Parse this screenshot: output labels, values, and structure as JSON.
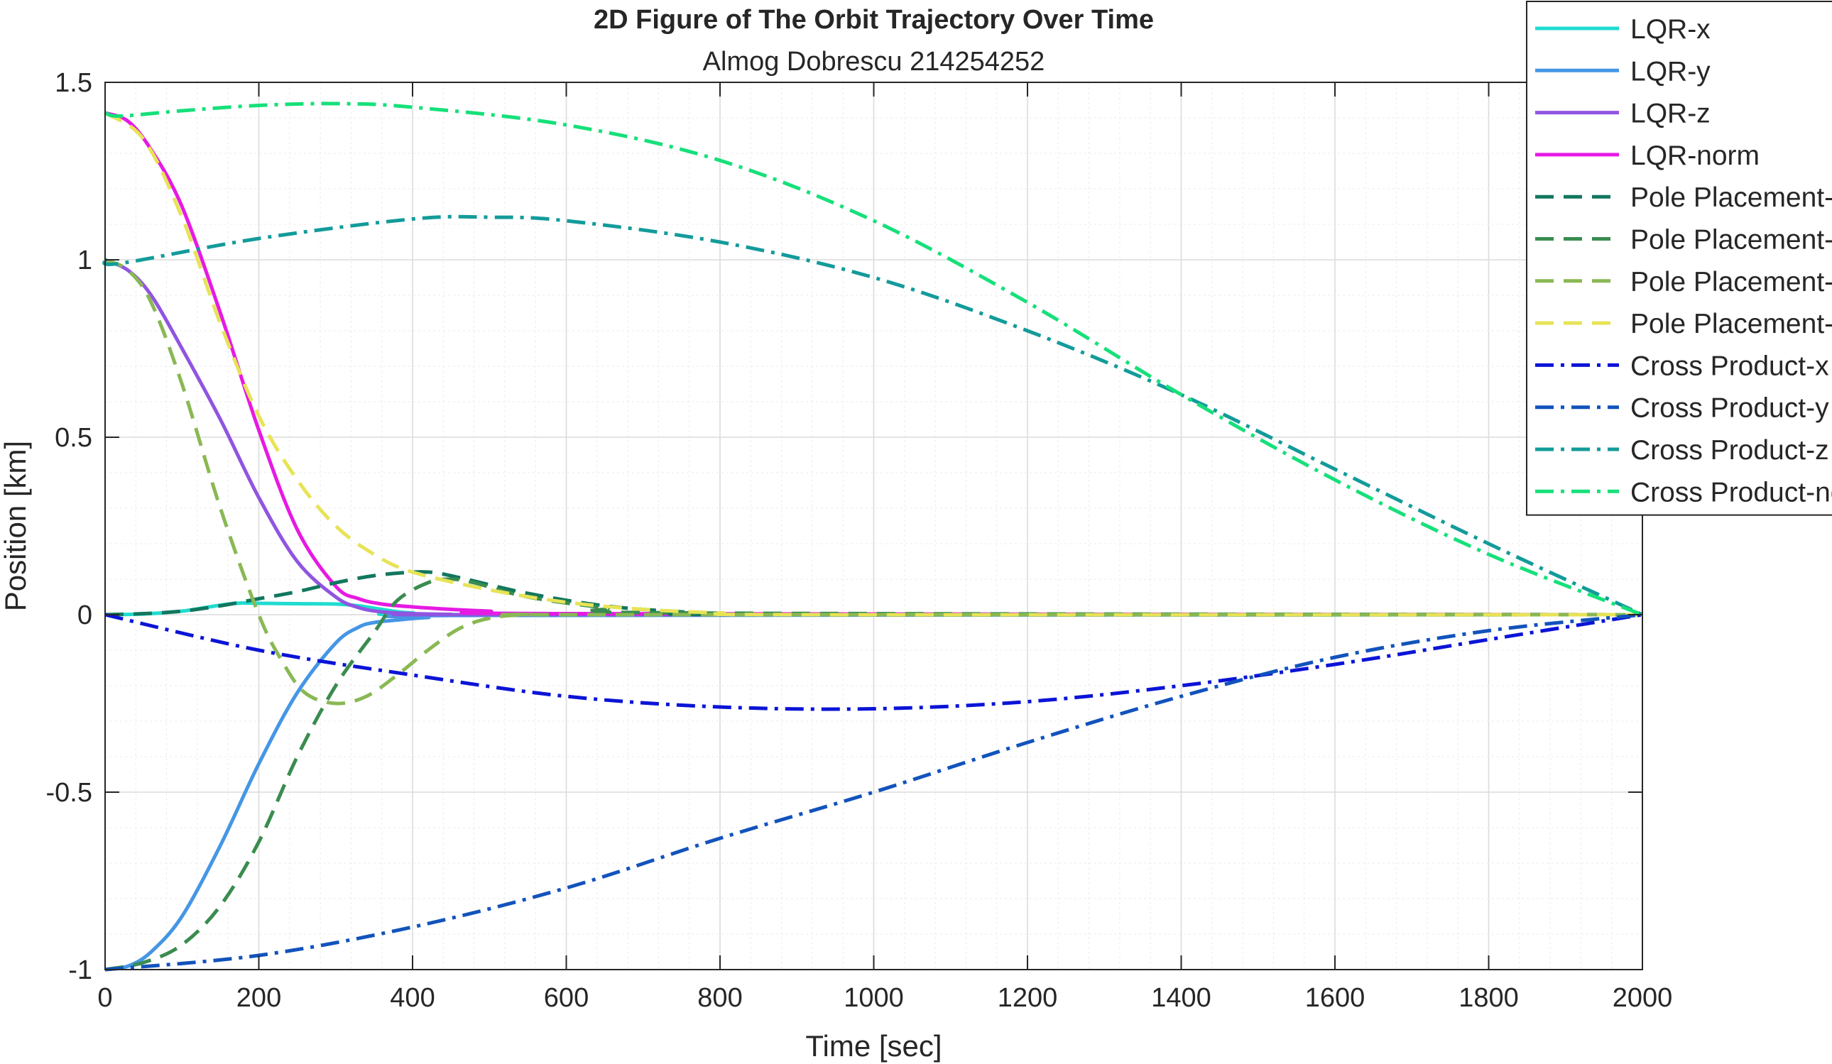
{
  "chart_data": {
    "type": "line",
    "title": "2D Figure of The Orbit Trajectory Over Time",
    "subtitle": "Almog Dobrescu 214254252",
    "xlabel": "Time [sec]",
    "ylabel": "Position [km]",
    "xlim": [
      0,
      2000
    ],
    "ylim": [
      -1,
      1.5
    ],
    "xticks": [
      "0",
      "200",
      "400",
      "600",
      "800",
      "1000",
      "1200",
      "1400",
      "1600",
      "1800",
      "2000"
    ],
    "yticks": [
      "-1",
      "-0.5",
      "0",
      "0.5",
      "1",
      "1.5"
    ],
    "grid": true,
    "minor_grid": true,
    "legend_position": "top-right",
    "series": [
      {
        "name": "LQR-x",
        "color": "#1fdcd0",
        "style": "solid",
        "x": [
          0,
          50,
          100,
          130,
          160,
          180,
          200,
          250,
          300,
          330,
          360,
          400,
          500,
          2000
        ],
        "y": [
          0,
          0.002,
          0.01,
          0.02,
          0.03,
          0.033,
          0.032,
          0.031,
          0.03,
          0.025,
          0.015,
          0.005,
          0,
          0
        ]
      },
      {
        "name": "LQR-y",
        "color": "#4596e5",
        "style": "solid",
        "x": [
          0,
          30,
          60,
          100,
          150,
          200,
          250,
          300,
          330,
          350,
          380,
          420,
          500,
          2000
        ],
        "y": [
          -1,
          -0.99,
          -0.95,
          -0.85,
          -0.65,
          -0.42,
          -0.22,
          -0.08,
          -0.035,
          -0.022,
          -0.015,
          -0.008,
          -0.002,
          0
        ]
      },
      {
        "name": "LQR-z",
        "color": "#9055e0",
        "style": "solid",
        "x": [
          0,
          30,
          60,
          100,
          150,
          200,
          250,
          300,
          330,
          360,
          400,
          450,
          500,
          2000
        ],
        "y": [
          1,
          0.97,
          0.9,
          0.75,
          0.55,
          0.33,
          0.15,
          0.05,
          0.02,
          0.008,
          0.003,
          0.001,
          0,
          0
        ]
      },
      {
        "name": "LQR-norm",
        "color": "#e61ae3",
        "style": "solid",
        "x": [
          0,
          30,
          60,
          100,
          150,
          200,
          250,
          300,
          330,
          360,
          400,
          450,
          500,
          600,
          2000
        ],
        "y": [
          1.414,
          1.39,
          1.31,
          1.15,
          0.85,
          0.52,
          0.24,
          0.08,
          0.045,
          0.03,
          0.022,
          0.015,
          0.01,
          0.003,
          0
        ]
      },
      {
        "name": "Pole Placement-x",
        "color": "#11775e",
        "style": "dash",
        "x": [
          0,
          50,
          100,
          150,
          200,
          250,
          300,
          350,
          400,
          430,
          470,
          550,
          650,
          750,
          850,
          2000
        ],
        "y": [
          0,
          0.003,
          0.01,
          0.025,
          0.045,
          0.065,
          0.09,
          0.11,
          0.12,
          0.118,
          0.1,
          0.06,
          0.025,
          0.008,
          0,
          0
        ]
      },
      {
        "name": "Pole Placement-y",
        "color": "#3a8c4f",
        "style": "dash",
        "x": [
          0,
          50,
          100,
          150,
          200,
          250,
          300,
          350,
          380,
          420,
          450,
          480,
          550,
          650,
          750,
          2000
        ],
        "y": [
          -1,
          -0.98,
          -0.93,
          -0.82,
          -0.64,
          -0.4,
          -0.2,
          -0.05,
          0.04,
          0.09,
          0.1,
          0.09,
          0.05,
          0.02,
          0.005,
          0
        ]
      },
      {
        "name": "Pole Placement-z",
        "color": "#8ab854",
        "style": "dash",
        "x": [
          0,
          30,
          60,
          100,
          150,
          200,
          230,
          260,
          300,
          340,
          380,
          420,
          460,
          500,
          550,
          650,
          2000
        ],
        "y": [
          1,
          0.97,
          0.88,
          0.65,
          0.3,
          0.0,
          -0.13,
          -0.22,
          -0.25,
          -0.23,
          -0.17,
          -0.1,
          -0.04,
          -0.01,
          0,
          0,
          0
        ]
      },
      {
        "name": "Pole Placement-norm",
        "color": "#e7e357",
        "style": "dash",
        "x": [
          0,
          50,
          100,
          150,
          200,
          250,
          300,
          350,
          400,
          500,
          600,
          700,
          800,
          900,
          2000
        ],
        "y": [
          1.414,
          1.34,
          1.12,
          0.82,
          0.56,
          0.38,
          0.25,
          0.17,
          0.12,
          0.07,
          0.035,
          0.015,
          0.005,
          0,
          0
        ]
      },
      {
        "name": "Cross Product-x",
        "color": "#0b14d6",
        "style": "dashdot",
        "x": [
          0,
          200,
          400,
          600,
          800,
          1000,
          1200,
          1400,
          1600,
          1800,
          2000
        ],
        "y": [
          0,
          -0.1,
          -0.17,
          -0.23,
          -0.26,
          -0.265,
          -0.245,
          -0.2,
          -0.14,
          -0.07,
          0
        ]
      },
      {
        "name": "Cross Product-y",
        "color": "#1253bc",
        "style": "dashdot",
        "x": [
          0,
          200,
          400,
          600,
          800,
          1000,
          1200,
          1400,
          1600,
          1800,
          2000
        ],
        "y": [
          -1,
          -0.96,
          -0.88,
          -0.77,
          -0.63,
          -0.5,
          -0.36,
          -0.23,
          -0.12,
          -0.045,
          0
        ]
      },
      {
        "name": "Cross Product-z",
        "color": "#139b9a",
        "style": "dashdot",
        "x": [
          0,
          20,
          200,
          400,
          500,
          600,
          800,
          1000,
          1200,
          1400,
          1600,
          1800,
          2000
        ],
        "y": [
          1,
          0.99,
          1.06,
          1.115,
          1.12,
          1.11,
          1.05,
          0.95,
          0.8,
          0.62,
          0.41,
          0.2,
          0
        ]
      },
      {
        "name": "Cross Product-norm",
        "color": "#16e07a",
        "style": "dashdot",
        "x": [
          0,
          20,
          100,
          200,
          300,
          400,
          600,
          800,
          1000,
          1200,
          1400,
          1600,
          1800,
          2000
        ],
        "y": [
          1.414,
          1.405,
          1.42,
          1.435,
          1.44,
          1.43,
          1.38,
          1.28,
          1.11,
          0.88,
          0.62,
          0.38,
          0.17,
          0
        ]
      }
    ]
  }
}
